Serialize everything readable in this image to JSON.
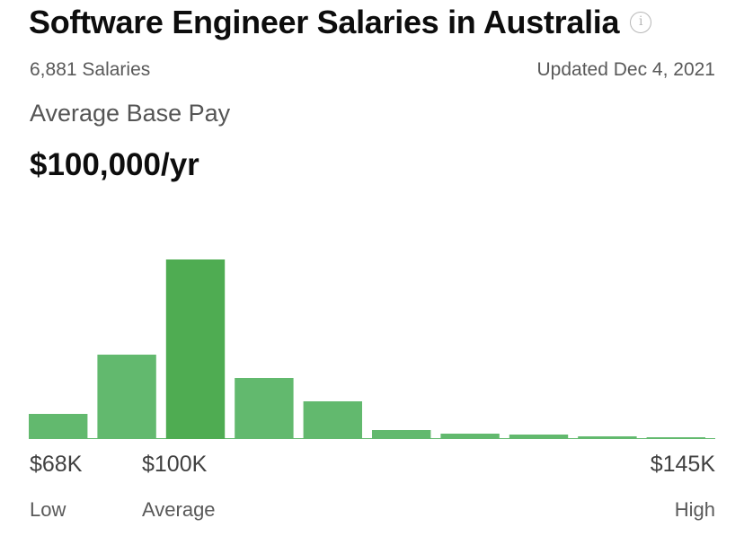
{
  "header": {
    "title": "Software Engineer Salaries in Australia",
    "info_icon": "info-circle-icon"
  },
  "meta": {
    "count": "6,881 Salaries",
    "updated": "Updated Dec 4, 2021"
  },
  "average": {
    "label": "Average Base Pay",
    "value": "$100,000/yr"
  },
  "chart_data": {
    "type": "bar",
    "description_values_are_relative_frequency": true,
    "values": [
      14,
      47,
      100,
      34,
      21,
      5,
      3,
      2.5,
      1.5,
      0.5
    ],
    "highlight_index": 2,
    "colors": {
      "bar": "#62b96e",
      "highlight": "#4fac52",
      "baseline": "#62b96e"
    },
    "axis": {
      "low_value": "$68K",
      "low_label": "Low",
      "avg_value": "$100K",
      "avg_label": "Average",
      "high_value": "$145K",
      "high_label": "High"
    }
  }
}
